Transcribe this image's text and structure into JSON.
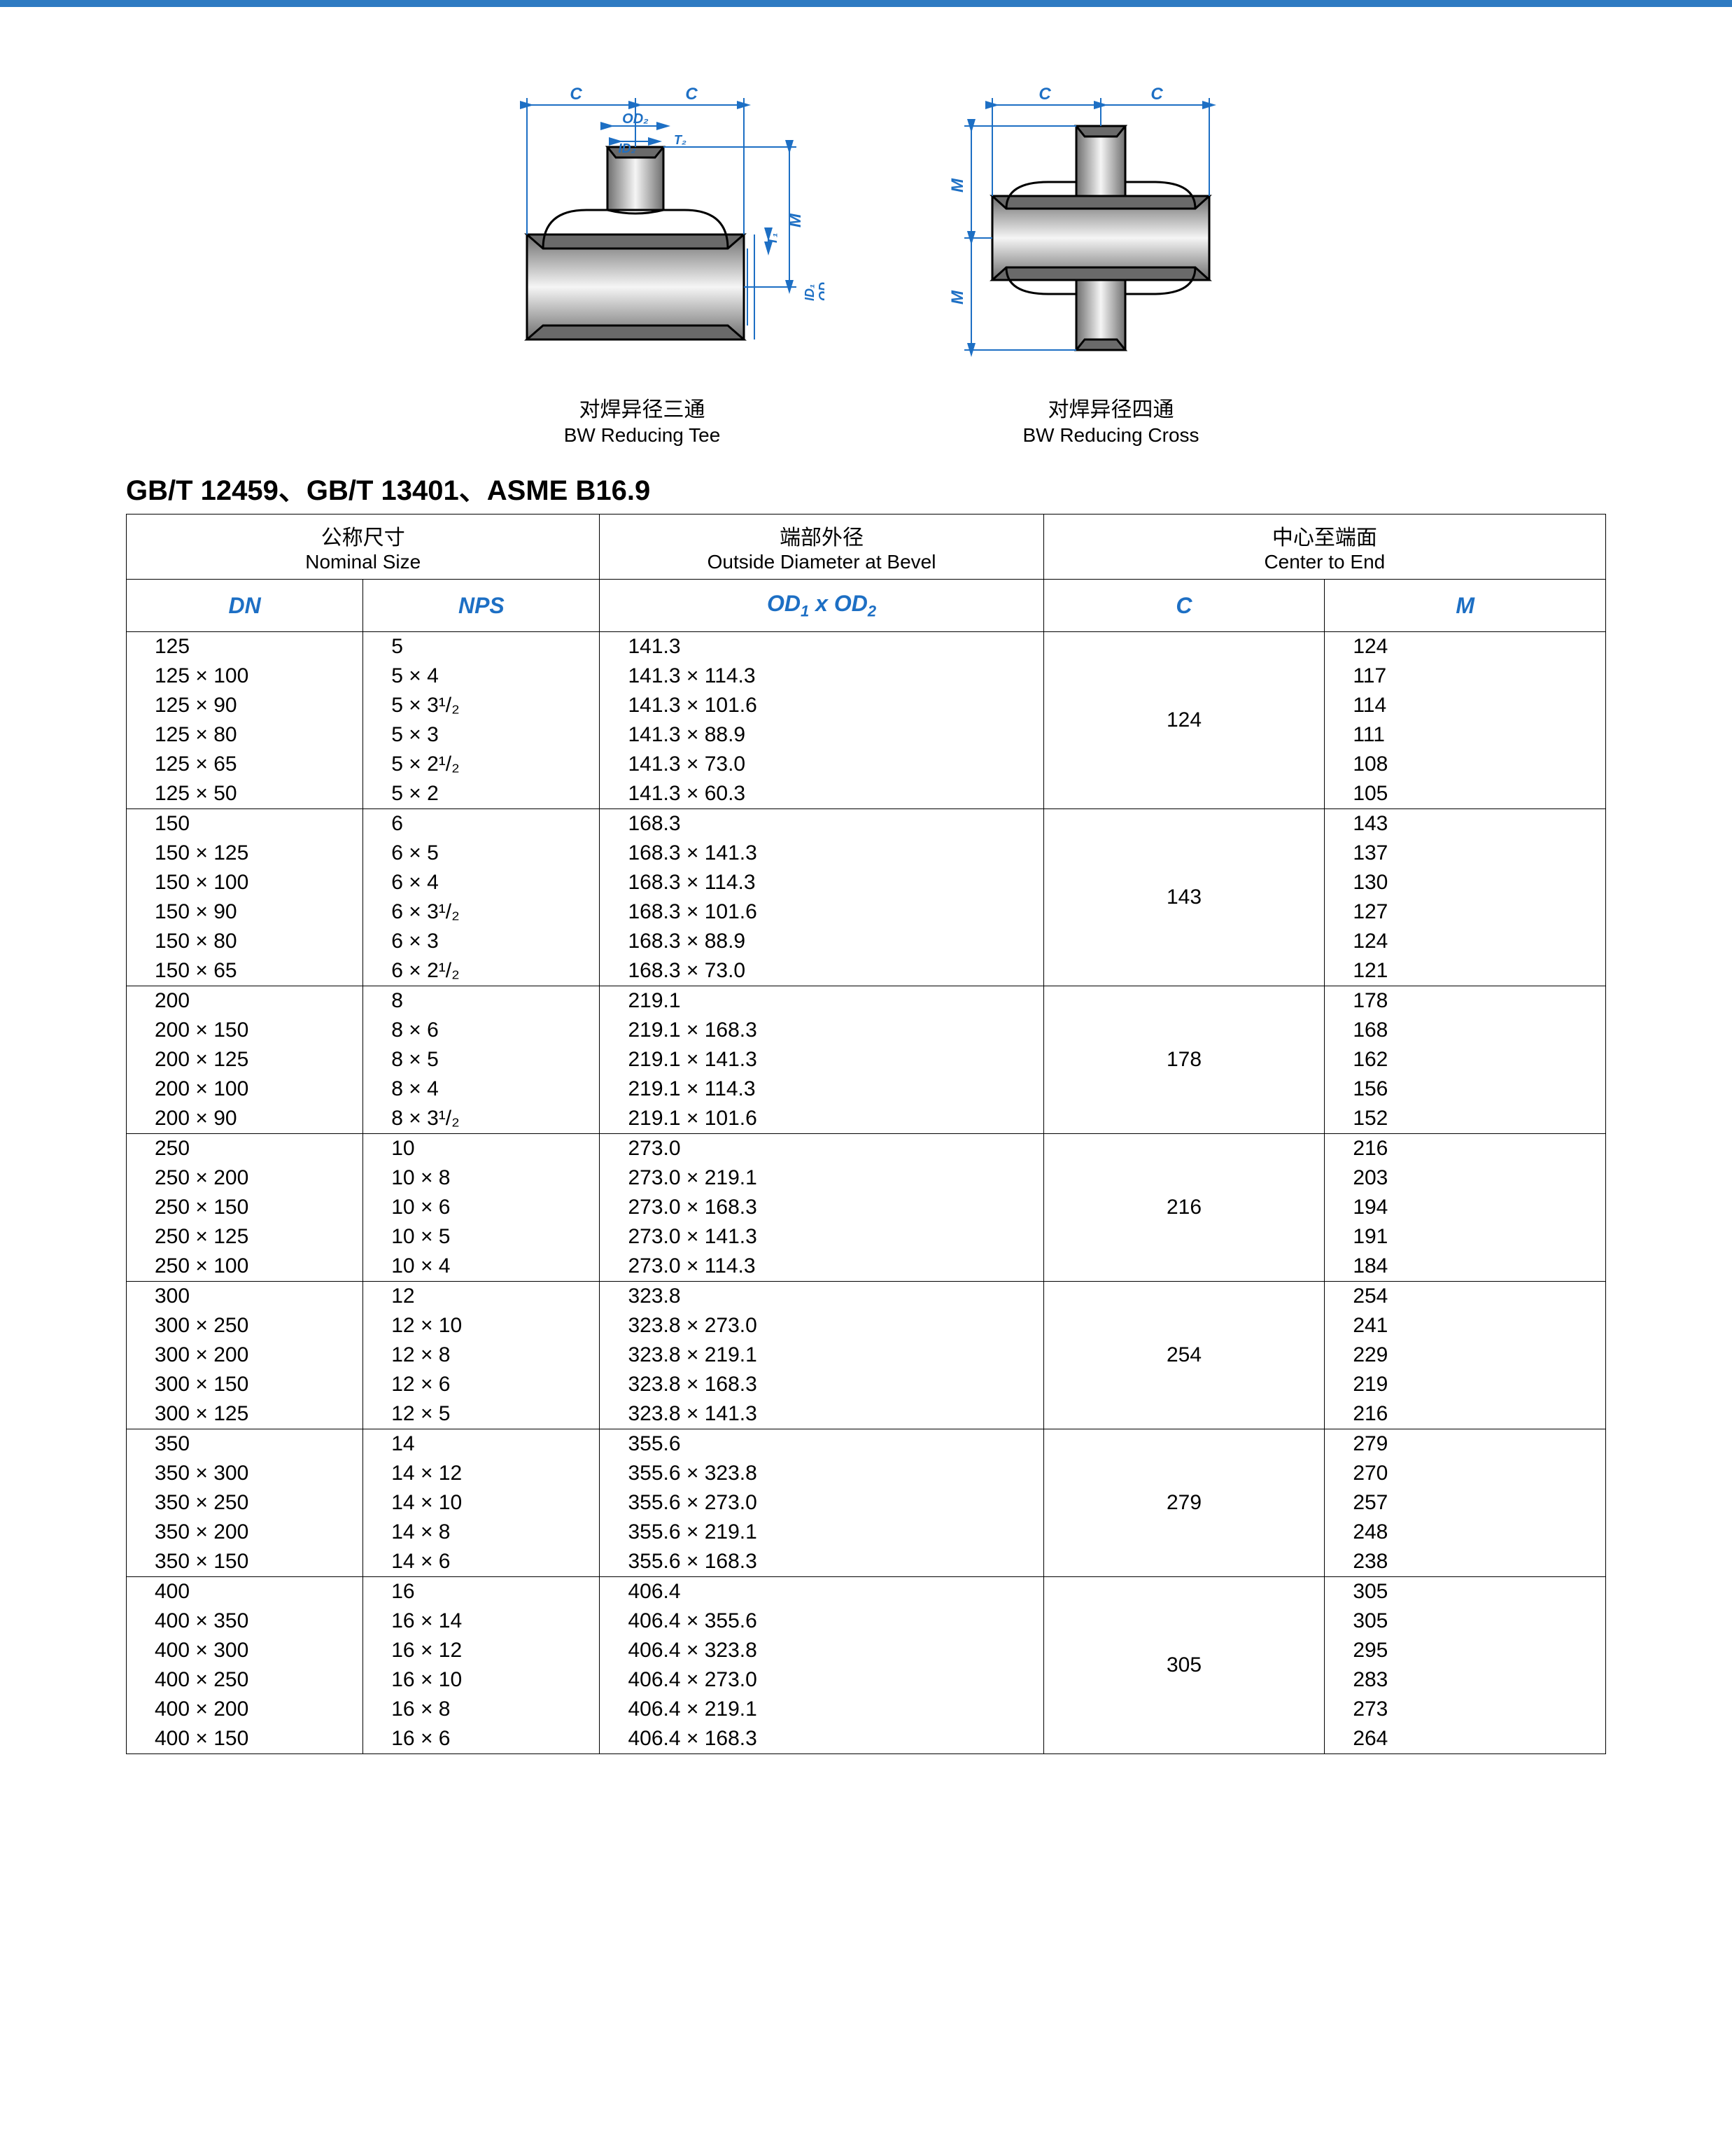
{
  "colors": {
    "accent": "#1d6fc4",
    "topbar": "#2e7bc2",
    "border": "#000000",
    "text": "#000000"
  },
  "diagrams": {
    "left": {
      "caption_cn": "对焊异径三通",
      "caption_en": "BW Reducing Tee",
      "labels": {
        "C": "C",
        "OD2": "OD₂",
        "ID2": "ID₂",
        "T2": "T₂",
        "T1": "T₁",
        "M": "M",
        "ID1": "ID₁",
        "OD1": "OD₁"
      }
    },
    "right": {
      "caption_cn": "对焊异径四通",
      "caption_en": "BW Reducing Cross",
      "labels": {
        "C": "C",
        "M": "M"
      }
    }
  },
  "std_title": "GB/T 12459、GB/T 13401、ASME B16.9",
  "header_grp": {
    "nominal_cn": "公称尺寸",
    "nominal_en": "Nominal  Size",
    "od_cn": "端部外径",
    "od_en": "Outside Diameter at Bevel",
    "cte_cn": "中心至端面",
    "cte_en": "Center to End"
  },
  "cols": {
    "dn": "DN",
    "nps": "NPS",
    "od": "OD₁ x OD₂",
    "c": "C",
    "m": "M"
  },
  "groups": [
    {
      "c": "124",
      "rows": [
        {
          "dn": "125",
          "nps": "5",
          "od": "141.3",
          "m": "124"
        },
        {
          "dn": "125 × 100",
          "nps": "5 × 4",
          "od": "141.3 × 114.3",
          "m": "117"
        },
        {
          "dn": "125 × 90",
          "nps": "5 × 3¹/₂",
          "od": "141.3 × 101.6",
          "m": "114"
        },
        {
          "dn": "125 × 80",
          "nps": "5 × 3",
          "od": "141.3 × 88.9",
          "m": "111"
        },
        {
          "dn": "125 × 65",
          "nps": "5 × 2¹/₂",
          "od": "141.3 × 73.0",
          "m": "108"
        },
        {
          "dn": "125 × 50",
          "nps": "5 × 2",
          "od": "141.3 × 60.3",
          "m": "105"
        }
      ]
    },
    {
      "c": "143",
      "rows": [
        {
          "dn": "150",
          "nps": "6",
          "od": "168.3",
          "m": "143"
        },
        {
          "dn": "150 × 125",
          "nps": "6 × 5",
          "od": "168.3 × 141.3",
          "m": "137"
        },
        {
          "dn": "150 × 100",
          "nps": "6 × 4",
          "od": "168.3 × 114.3",
          "m": "130"
        },
        {
          "dn": "150 × 90",
          "nps": "6 × 3¹/₂",
          "od": "168.3 × 101.6",
          "m": "127"
        },
        {
          "dn": "150 × 80",
          "nps": "6 × 3",
          "od": "168.3 × 88.9",
          "m": "124"
        },
        {
          "dn": "150 × 65",
          "nps": "6 × 2¹/₂",
          "od": "168.3 × 73.0",
          "m": "121"
        }
      ]
    },
    {
      "c": "178",
      "rows": [
        {
          "dn": "200",
          "nps": "8",
          "od": "219.1",
          "m": "178"
        },
        {
          "dn": "200 × 150",
          "nps": "8 × 6",
          "od": "219.1 × 168.3",
          "m": "168"
        },
        {
          "dn": "200 × 125",
          "nps": "8 × 5",
          "od": "219.1 × 141.3",
          "m": "162"
        },
        {
          "dn": "200 × 100",
          "nps": "8 × 4",
          "od": "219.1 × 114.3",
          "m": "156"
        },
        {
          "dn": "200 × 90",
          "nps": "8 × 3¹/₂",
          "od": "219.1 × 101.6",
          "m": "152"
        }
      ]
    },
    {
      "c": "216",
      "rows": [
        {
          "dn": "250",
          "nps": "10",
          "od": "273.0",
          "m": "216"
        },
        {
          "dn": "250 × 200",
          "nps": "10 × 8",
          "od": "273.0 × 219.1",
          "m": "203"
        },
        {
          "dn": "250 × 150",
          "nps": "10 × 6",
          "od": "273.0 × 168.3",
          "m": "194"
        },
        {
          "dn": "250 × 125",
          "nps": "10 × 5",
          "od": "273.0 × 141.3",
          "m": "191"
        },
        {
          "dn": "250 × 100",
          "nps": "10 × 4",
          "od": "273.0 × 114.3",
          "m": "184"
        }
      ]
    },
    {
      "c": "254",
      "rows": [
        {
          "dn": "300",
          "nps": "12",
          "od": "323.8",
          "m": "254"
        },
        {
          "dn": "300 × 250",
          "nps": "12 × 10",
          "od": "323.8 × 273.0",
          "m": "241"
        },
        {
          "dn": "300 × 200",
          "nps": "12 × 8",
          "od": "323.8 × 219.1",
          "m": "229"
        },
        {
          "dn": "300 × 150",
          "nps": "12 × 6",
          "od": "323.8 × 168.3",
          "m": "219"
        },
        {
          "dn": "300 × 125",
          "nps": "12 × 5",
          "od": "323.8 × 141.3",
          "m": "216"
        }
      ]
    },
    {
      "c": "279",
      "rows": [
        {
          "dn": "350",
          "nps": "14",
          "od": "355.6",
          "m": "279"
        },
        {
          "dn": "350 × 300",
          "nps": "14 × 12",
          "od": "355.6 × 323.8",
          "m": "270"
        },
        {
          "dn": "350 × 250",
          "nps": "14 × 10",
          "od": "355.6 × 273.0",
          "m": "257"
        },
        {
          "dn": "350 × 200",
          "nps": "14 × 8",
          "od": "355.6 × 219.1",
          "m": "248"
        },
        {
          "dn": "350 × 150",
          "nps": "14 × 6",
          "od": "355.6 × 168.3",
          "m": "238"
        }
      ]
    },
    {
      "c": "305",
      "rows": [
        {
          "dn": "400",
          "nps": "16",
          "od": "406.4",
          "m": "305"
        },
        {
          "dn": "400 × 350",
          "nps": "16 × 14",
          "od": "406.4 × 355.6",
          "m": "305"
        },
        {
          "dn": "400 × 300",
          "nps": "16 × 12",
          "od": "406.4 × 323.8",
          "m": "295"
        },
        {
          "dn": "400 × 250",
          "nps": "16 × 10",
          "od": "406.4 × 273.0",
          "m": "283"
        },
        {
          "dn": "400 × 200",
          "nps": "16 × 8",
          "od": "406.4 × 219.1",
          "m": "273"
        },
        {
          "dn": "400 × 150",
          "nps": "16 × 6",
          "od": "406.4 × 168.3",
          "m": "264"
        }
      ]
    }
  ],
  "diagram_style": {
    "fitting_fill_light": "#f5f5f5",
    "fitting_fill_dark": "#6e6e6e",
    "dim_line_color": "#1d6fc4",
    "dim_line_width": 2,
    "dim_text_color": "#1d6fc4",
    "dim_font_size": 24,
    "dim_font_style": "italic bold",
    "outline_color": "#000000",
    "outline_width": 3
  }
}
